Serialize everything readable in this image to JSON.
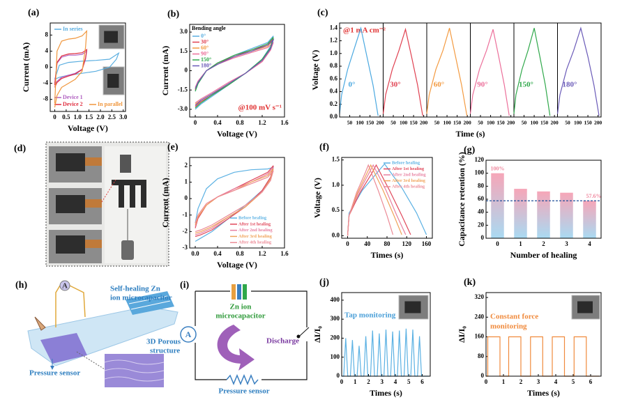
{
  "chart_data": [
    {
      "type": "line",
      "panel": "(a)",
      "xlabel": "Voltage (V)",
      "ylabel": "Current (mA)",
      "xlim": [
        -0.2,
        3.1
      ],
      "xticks": [
        0,
        0.5,
        {
          "value": 1,
          "label": "1.0"
        },
        1.5,
        {
          "value": 2,
          "label": "2.0"
        },
        2.5,
        {
          "value": 3,
          "label": "3.0"
        }
      ],
      "ylim": [
        -11,
        11
      ],
      "yticks": [
        -8,
        -4,
        0,
        4,
        8
      ],
      "series": [
        {
          "name": "In series",
          "color": "#5aaee0",
          "x": [
            0,
            0.2,
            0.6,
            1.2,
            1.8,
            2.4,
            2.8,
            2.7,
            2.4,
            1.8,
            1.2,
            0.6,
            0.2,
            0
          ],
          "values": [
            -3,
            0.5,
            1.2,
            1.5,
            1.7,
            2,
            3.5,
            2,
            0,
            -1,
            -1.5,
            -2,
            -2.5,
            -3
          ]
        },
        {
          "name": "Device 1",
          "color": "#b060c0",
          "x": [
            0,
            0.1,
            0.3,
            0.6,
            0.9,
            1.2,
            1.4,
            1.35,
            1.2,
            0.9,
            0.6,
            0.3,
            0.1,
            0
          ],
          "values": [
            -4,
            1,
            2.5,
            3,
            3,
            3.2,
            4,
            2,
            -0.5,
            -1.5,
            -2,
            -2.5,
            -3.5,
            -4.5
          ]
        },
        {
          "name": "Device 2",
          "color": "#e03040",
          "x": [
            0,
            0.1,
            0.3,
            0.6,
            0.9,
            1.2,
            1.4,
            1.35,
            1.2,
            0.9,
            0.6,
            0.3,
            0.1,
            0
          ],
          "values": [
            -4.5,
            1.2,
            2.8,
            3.3,
            3.4,
            3.6,
            4.4,
            2.3,
            -0.6,
            -1.7,
            -2.2,
            -2.8,
            -3.8,
            -5
          ]
        },
        {
          "name": "In parallel",
          "color": "#f0963c",
          "x": [
            0,
            0.1,
            0.3,
            0.6,
            0.9,
            1.2,
            1.4,
            1.35,
            1.2,
            0.9,
            0.6,
            0.3,
            0.1,
            0
          ],
          "values": [
            -9,
            4,
            6.5,
            7,
            7.2,
            7.8,
            9,
            5,
            -1,
            -3,
            -4,
            -5,
            -7,
            -10
          ]
        }
      ]
    },
    {
      "type": "line",
      "panel": "(b)",
      "xlabel": "Voltage (V)",
      "ylabel": "Current (mA)",
      "legend_title": "Bending angle",
      "annotations": [
        {
          "text": "@100 mV s⁻¹",
          "color": "#e03030"
        }
      ],
      "xlim": [
        -0.1,
        1.6
      ],
      "xticks": [
        0,
        0.4,
        0.8,
        1.2,
        1.6
      ],
      "ylim": [
        -3.6,
        3.6
      ],
      "yticks": [
        {
          "value": -3,
          "label": "-3.0"
        },
        -1.5,
        0,
        1.5,
        {
          "value": 3,
          "label": "3.0"
        }
      ],
      "x": [
        0,
        0.05,
        0.2,
        0.4,
        0.7,
        1.0,
        1.3,
        1.4,
        1.35,
        1.2,
        0.9,
        0.6,
        0.3,
        0.1,
        0
      ],
      "series": [
        {
          "name": "0°",
          "color": "#5aaee0",
          "values": [
            -1.6,
            -1.0,
            0,
            0.6,
            1.2,
            1.7,
            2.2,
            2.7,
            1.9,
            0.9,
            -0.2,
            -1.1,
            -2.0,
            -2.6,
            -3.0
          ]
        },
        {
          "name": "30°",
          "color": "#e04050",
          "values": [
            -1.5,
            -0.9,
            0,
            0.6,
            1.1,
            1.6,
            2.0,
            2.5,
            1.8,
            0.8,
            -0.2,
            -1.0,
            -1.9,
            -2.4,
            -2.8
          ]
        },
        {
          "name": "60°",
          "color": "#f39a40",
          "values": [
            -1.4,
            -0.9,
            0,
            0.5,
            1.1,
            1.5,
            1.9,
            2.4,
            1.7,
            0.8,
            -0.2,
            -1.0,
            -1.8,
            -2.3,
            -2.6
          ]
        },
        {
          "name": "90°",
          "color": "#ec6f9a",
          "values": [
            -1.3,
            -0.8,
            0,
            0.5,
            1.0,
            1.4,
            1.8,
            2.2,
            1.6,
            0.7,
            -0.2,
            -0.9,
            -1.7,
            -2.2,
            -2.5
          ]
        },
        {
          "name": "150°",
          "color": "#2fa84a",
          "values": [
            -1.6,
            -1.0,
            0,
            0.6,
            1.2,
            1.6,
            2.1,
            2.6,
            1.8,
            0.9,
            -0.2,
            -1.1,
            -1.9,
            -2.5,
            -2.9
          ]
        },
        {
          "name": "180°",
          "color": "#6a5ab8",
          "values": [
            -1.4,
            -0.9,
            0,
            0.5,
            1.1,
            1.5,
            2.0,
            2.4,
            1.7,
            0.8,
            -0.2,
            -1.0,
            -1.8,
            -2.3,
            -2.7
          ]
        }
      ]
    },
    {
      "type": "line_panels",
      "panel": "(c)",
      "xlabel": "Time (s)",
      "ylabel": "Voltage (V)",
      "annotations": [
        {
          "text": "@1 mA cm⁻²",
          "color": "#e03030"
        }
      ],
      "xlim": [
        0,
        215
      ],
      "xticks": [
        50,
        100,
        150,
        200
      ],
      "ylim": [
        0,
        1.48
      ],
      "yticks": [
        {
          "value": 0,
          "label": "0.0"
        },
        0.2,
        0.4,
        0.6,
        0.8,
        {
          "value": 1,
          "label": "1.0"
        },
        1.2,
        1.4
      ],
      "series": [
        {
          "name": "0°",
          "color": "#4aa8e0",
          "x": [
            0,
            10,
            40,
            70,
            105,
            135,
            165,
            190
          ],
          "values": [
            0.05,
            0.35,
            0.75,
            1.05,
            1.4,
            0.95,
            0.5,
            0.02
          ]
        },
        {
          "name": "30°",
          "color": "#e04050",
          "x": [
            0,
            12,
            45,
            78,
            110,
            140,
            170,
            195
          ],
          "values": [
            0.05,
            0.35,
            0.75,
            1.05,
            1.38,
            0.95,
            0.5,
            0.02
          ]
        },
        {
          "name": "60°",
          "color": "#f39a40",
          "x": [
            0,
            12,
            45,
            80,
            112,
            142,
            172,
            198
          ],
          "values": [
            0.05,
            0.35,
            0.75,
            1.05,
            1.4,
            0.95,
            0.5,
            0.02
          ]
        },
        {
          "name": "90°",
          "color": "#ec6f9a",
          "x": [
            0,
            12,
            45,
            80,
            112,
            140,
            168,
            192
          ],
          "values": [
            0.05,
            0.35,
            0.75,
            1.05,
            1.38,
            0.95,
            0.5,
            0.02
          ]
        },
        {
          "name": "150°",
          "color": "#2fa84a",
          "x": [
            0,
            10,
            40,
            70,
            100,
            128,
            155,
            178
          ],
          "values": [
            0.05,
            0.35,
            0.75,
            1.05,
            1.4,
            0.95,
            0.5,
            0.02
          ]
        },
        {
          "name": "180°",
          "color": "#6a5ab8",
          "x": [
            0,
            12,
            45,
            80,
            115,
            150,
            180,
            205
          ],
          "values": [
            0.05,
            0.35,
            0.75,
            1.05,
            1.4,
            0.95,
            0.5,
            0.02
          ]
        }
      ]
    },
    {
      "type": "line",
      "panel": "(e)",
      "xlabel": "Voltage (V)",
      "ylabel": "Current (mA)",
      "xlim": [
        -0.1,
        1.6
      ],
      "xticks": [
        {
          "value": 0,
          "label": "0.0"
        },
        0.4,
        0.8,
        1.2,
        1.6
      ],
      "ylim": [
        -3,
        2.5
      ],
      "yticks": [
        -3,
        -2,
        -1,
        0,
        1,
        2
      ],
      "x": [
        0,
        0.05,
        0.2,
        0.4,
        0.7,
        1.0,
        1.3,
        1.4,
        1.35,
        1.2,
        0.9,
        0.6,
        0.3,
        0.1,
        0
      ],
      "series": [
        {
          "name": "Before healing",
          "color": "#5bb1e3",
          "values": [
            -1.5,
            -0.6,
            0.6,
            1.2,
            1.6,
            1.75,
            1.8,
            1.9,
            1.3,
            0.5,
            -0.4,
            -1.2,
            -2.0,
            -2.4,
            -2.6
          ]
        },
        {
          "name": "After 1st healing",
          "color": "#e0475a",
          "values": [
            -1.8,
            -1.2,
            -0.4,
            0.1,
            0.6,
            1.1,
            1.6,
            2.0,
            1.3,
            0.5,
            -0.5,
            -1.2,
            -1.9,
            -2.2,
            -2.3
          ]
        },
        {
          "name": "After 2nd healing",
          "color": "#e77fa0",
          "values": [
            -1.7,
            -1.1,
            -0.4,
            0.1,
            0.6,
            1.0,
            1.5,
            1.9,
            1.2,
            0.4,
            -0.5,
            -1.1,
            -1.8,
            -2.1,
            -2.2
          ]
        },
        {
          "name": "After 3rd healing",
          "color": "#f0a35a",
          "values": [
            -1.6,
            -1.1,
            -0.4,
            0.1,
            0.5,
            1.0,
            1.4,
            1.8,
            1.2,
            0.4,
            -0.5,
            -1.1,
            -1.7,
            -2.0,
            -2.1
          ]
        },
        {
          "name": "After 4th healing",
          "color": "#ec8a96",
          "values": [
            -1.5,
            -1.0,
            -0.3,
            0.1,
            0.5,
            0.9,
            1.3,
            1.7,
            1.1,
            0.4,
            -0.4,
            -1.0,
            -1.6,
            -1.9,
            -2.0
          ]
        }
      ]
    },
    {
      "type": "line",
      "panel": "(f)",
      "xlabel": "Times (s)",
      "ylabel": "Voltage (V)",
      "xlim": [
        -12,
        172
      ],
      "xticks": [
        0,
        40,
        80,
        120,
        160
      ],
      "ylim": [
        -0.05,
        1.55
      ],
      "yticks": [
        {
          "value": 0,
          "label": "0.0"
        },
        0.5,
        {
          "value": 1,
          "label": "1.0"
        },
        1.5
      ],
      "series": [
        {
          "name": "Before healing",
          "color": "#5bb1e3",
          "x": [
            0,
            3,
            30,
            60,
            75,
            110,
            140,
            160
          ],
          "values": [
            0,
            0.45,
            0.9,
            1.25,
            1.42,
            0.95,
            0.45,
            0.02
          ]
        },
        {
          "name": "After 1st healing",
          "color": "#e0475a",
          "x": [
            0,
            3,
            25,
            50,
            58,
            85,
            110,
            128
          ],
          "values": [
            0,
            0.4,
            0.85,
            1.25,
            1.4,
            0.9,
            0.4,
            0.02
          ]
        },
        {
          "name": "After 2nd healing",
          "color": "#e77fa0",
          "x": [
            0,
            3,
            22,
            44,
            52,
            78,
            100,
            118
          ],
          "values": [
            0,
            0.4,
            0.85,
            1.25,
            1.4,
            0.9,
            0.4,
            0.02
          ]
        },
        {
          "name": "After 3rd healing",
          "color": "#f0a35a",
          "x": [
            0,
            3,
            20,
            40,
            47,
            72,
            94,
            110
          ],
          "values": [
            0,
            0.4,
            0.85,
            1.25,
            1.4,
            0.9,
            0.4,
            0.02
          ]
        },
        {
          "name": "After 4th healing",
          "color": "#ec8a96",
          "x": [
            0,
            3,
            18,
            36,
            42,
            62,
            80,
            92
          ],
          "values": [
            0,
            0.4,
            0.85,
            1.25,
            1.4,
            0.9,
            0.4,
            0.02
          ]
        }
      ]
    },
    {
      "type": "bar",
      "panel": "(g)",
      "xlabel": "Number of healing",
      "ylabel": "Capacitance retention (%)",
      "categories": [
        "0",
        "1",
        "2",
        "3",
        "4"
      ],
      "values": [
        100,
        76,
        72,
        70,
        57.6
      ],
      "value_labels": [
        "100%",
        null,
        null,
        null,
        "57.6%"
      ],
      "colors": [
        "#f6a6b8",
        "#a9daf2"
      ],
      "label_color": "#f08aa0",
      "line_color": "#1f4f9a",
      "ylim": [
        0,
        120
      ],
      "yticks": [
        0,
        20,
        40,
        60,
        80,
        100,
        120
      ]
    },
    {
      "type": "line",
      "panel": "(j)",
      "xlabel": "Times (s)",
      "ylabel": "ΔI/I₀",
      "annotations": [
        {
          "text": "Tap monitoring",
          "color": "#4a9fd8"
        }
      ],
      "xlim": [
        0,
        6.6
      ],
      "xticks": [
        0,
        1,
        2,
        3,
        4,
        5,
        6
      ],
      "ylim": [
        0,
        440
      ],
      "yticks": [
        0,
        100,
        200,
        300,
        400
      ],
      "series": [
        {
          "name": null,
          "color": "#5bb1e3",
          "x": [
            0,
            0.15,
            0.3,
            0.45,
            0.65,
            0.8,
            0.95,
            1.15,
            1.3,
            1.45,
            1.65,
            1.8,
            1.95,
            2.15,
            2.3,
            2.45,
            2.65,
            2.8,
            2.95,
            3.15,
            3.3,
            3.45,
            3.65,
            3.8,
            3.95,
            4.15,
            4.3,
            4.45,
            4.65,
            4.8,
            4.95,
            5.15,
            5.3,
            5.45,
            5.65,
            5.8,
            5.95,
            6.5
          ],
          "values": [
            0,
            0,
            200,
            0,
            0,
            190,
            0,
            0,
            160,
            0,
            0,
            210,
            0,
            0,
            240,
            0,
            0,
            225,
            0,
            0,
            245,
            0,
            0,
            235,
            0,
            0,
            240,
            0,
            0,
            250,
            0,
            0,
            245,
            0,
            0,
            210,
            0,
            0
          ]
        }
      ]
    },
    {
      "type": "line",
      "panel": "(k)",
      "xlabel": "Times (s)",
      "ylabel": "ΔI/I₀",
      "annotations": [
        {
          "text": "Constant force",
          "color": "#f08a3c"
        },
        {
          "text": "monitoring",
          "color": "#f08a3c"
        }
      ],
      "xlim": [
        0,
        6.6
      ],
      "xticks": [
        0,
        1,
        2,
        3,
        4,
        5,
        6
      ],
      "ylim": [
        0,
        340
      ],
      "yticks": [
        0,
        80,
        160,
        240,
        320
      ],
      "series": [
        {
          "name": null,
          "color": "#f08a3c",
          "x": [
            0,
            0.1,
            0.1,
            0.8,
            0.8,
            1.3,
            1.3,
            2.0,
            2.0,
            2.55,
            2.55,
            3.25,
            3.25,
            3.8,
            3.8,
            4.5,
            4.5,
            5.05,
            5.05,
            5.75,
            5.75,
            6.5
          ],
          "values": [
            0,
            0,
            160,
            160,
            0,
            0,
            160,
            160,
            0,
            0,
            160,
            160,
            0,
            0,
            160,
            160,
            0,
            0,
            160,
            160,
            0,
            0
          ]
        }
      ]
    }
  ],
  "diagrams": {
    "d": {
      "panel": "(d)"
    },
    "h": {
      "panel": "(h)",
      "meter": "A",
      "capacitor": [
        "Self-healing Zn",
        "ion microcapacitor"
      ],
      "structure": [
        "3D Porous",
        "structure"
      ],
      "sensor": "Pressure sensor"
    },
    "i": {
      "panel": "(i)",
      "meter": "A",
      "capacitor": [
        "Zn ion",
        "microcapacitor"
      ],
      "discharge": "Discharge",
      "sensor": "Pressure sensor"
    }
  }
}
